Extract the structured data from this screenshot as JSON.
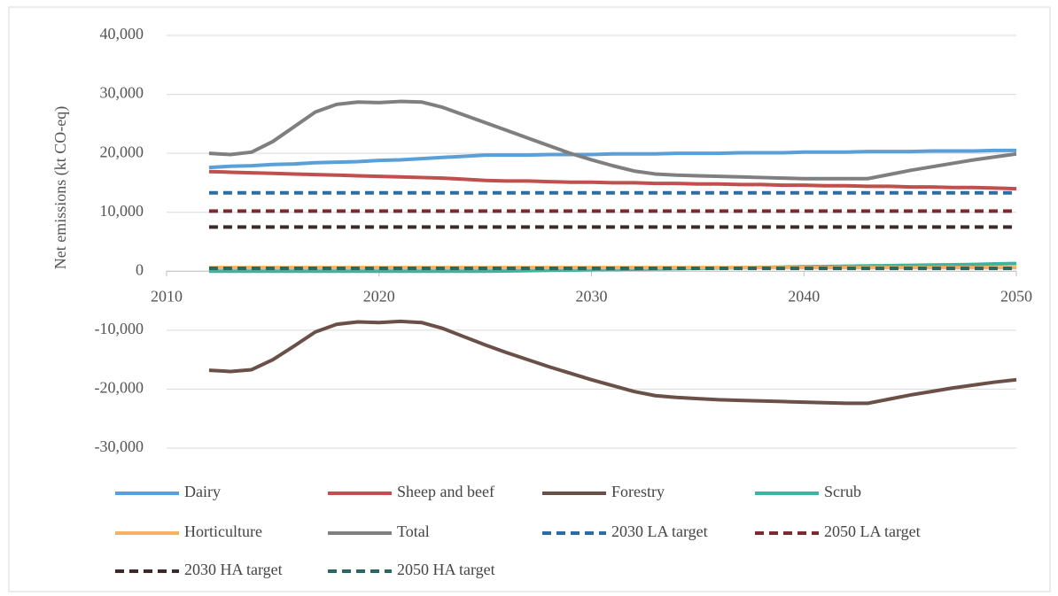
{
  "chart_data": {
    "type": "line",
    "y_label": "Net emissions (kt CO-eq)",
    "x": [
      2012,
      2013,
      2014,
      2015,
      2016,
      2017,
      2018,
      2019,
      2020,
      2021,
      2022,
      2023,
      2024,
      2025,
      2026,
      2027,
      2028,
      2029,
      2030,
      2031,
      2032,
      2033,
      2034,
      2035,
      2036,
      2037,
      2038,
      2039,
      2040,
      2041,
      2042,
      2043,
      2044,
      2045,
      2046,
      2047,
      2048,
      2049,
      2050
    ],
    "xlim": [
      2010,
      2050
    ],
    "xticks": [
      2010,
      2020,
      2030,
      2040,
      2050
    ],
    "ylim": [
      -30000,
      40000
    ],
    "yticks": [
      {
        "value": -30000,
        "label": "-30,000"
      },
      {
        "value": -20000,
        "label": "-20,000"
      },
      {
        "value": -10000,
        "label": "-10,000"
      },
      0,
      {
        "value": 10000,
        "label": "10,000"
      },
      {
        "value": 20000,
        "label": "20,000"
      },
      {
        "value": 30000,
        "label": "30,000"
      },
      {
        "value": 40000,
        "label": "40,000"
      }
    ],
    "grid": true,
    "legend": "bottom",
    "series": [
      {
        "name": "Dairy",
        "color": "#5b9fd9",
        "values": [
          17600,
          17800,
          17900,
          18100,
          18200,
          18400,
          18500,
          18600,
          18800,
          18900,
          19100,
          19300,
          19500,
          19700,
          19700,
          19700,
          19800,
          19800,
          19800,
          19900,
          19900,
          19900,
          20000,
          20000,
          20000,
          20100,
          20100,
          20100,
          20200,
          20200,
          20200,
          20300,
          20300,
          20300,
          20400,
          20400,
          20400,
          20500,
          20500
        ]
      },
      {
        "name": "Sheep and beef",
        "color": "#c0504d",
        "values": [
          16900,
          16800,
          16700,
          16600,
          16500,
          16400,
          16300,
          16200,
          16100,
          16000,
          15900,
          15800,
          15600,
          15400,
          15300,
          15300,
          15200,
          15100,
          15100,
          15000,
          15000,
          14900,
          14900,
          14800,
          14800,
          14700,
          14700,
          14600,
          14600,
          14500,
          14500,
          14400,
          14400,
          14300,
          14300,
          14200,
          14200,
          14100,
          14000
        ]
      },
      {
        "name": "Forestry",
        "color": "#6b5048",
        "values": [
          -16800,
          -17000,
          -16700,
          -15000,
          -12700,
          -10300,
          -9000,
          -8600,
          -8700,
          -8500,
          -8700,
          -9700,
          -11100,
          -12500,
          -13800,
          -15000,
          -16200,
          -17300,
          -18400,
          -19400,
          -20400,
          -21100,
          -21400,
          -21600,
          -21800,
          -21900,
          -22000,
          -22100,
          -22200,
          -22300,
          -22400,
          -22400,
          -21700,
          -21000,
          -20400,
          -19800,
          -19300,
          -18800,
          -18400
        ]
      },
      {
        "name": "Scrub",
        "color": "#3db4a0",
        "values": [
          0,
          0,
          0,
          0,
          0,
          0,
          0,
          0,
          0,
          0,
          0,
          0,
          0,
          0,
          50,
          100,
          150,
          200,
          250,
          300,
          350,
          400,
          450,
          500,
          550,
          600,
          650,
          700,
          750,
          800,
          850,
          900,
          950,
          1000,
          1050,
          1100,
          1150,
          1250,
          1300
        ]
      },
      {
        "name": "Horticulture",
        "color": "#f6b064",
        "values": [
          600,
          600,
          600,
          600,
          600,
          600,
          600,
          600,
          600,
          600,
          600,
          600,
          600,
          600,
          600,
          600,
          600,
          600,
          600,
          600,
          600,
          600,
          600,
          600,
          600,
          600,
          600,
          600,
          600,
          600,
          600,
          600,
          600,
          600,
          600,
          600,
          600,
          600,
          600
        ]
      },
      {
        "name": "Total",
        "color": "#7f7f7f",
        "values": [
          20000,
          19800,
          20200,
          22000,
          24500,
          27000,
          28300,
          28700,
          28600,
          28800,
          28700,
          27800,
          26500,
          25200,
          23900,
          22600,
          21300,
          20000,
          18900,
          17900,
          17000,
          16500,
          16300,
          16200,
          16100,
          16000,
          15900,
          15800,
          15700,
          15700,
          15700,
          15700,
          16400,
          17100,
          17700,
          18300,
          18900,
          19400,
          19900
        ]
      },
      {
        "name": "2030 LA target",
        "color": "#2e6ca4",
        "dash": true,
        "x": [
          2012,
          2050
        ],
        "values": [
          13300,
          13300
        ]
      },
      {
        "name": "2050 LA target",
        "color": "#7a2a30",
        "dash": true,
        "x": [
          2012,
          2050
        ],
        "values": [
          10200,
          10200
        ]
      },
      {
        "name": "2030 HA target",
        "color": "#3a2a28",
        "dash": true,
        "x": [
          2012,
          2050
        ],
        "values": [
          7500,
          7500
        ]
      },
      {
        "name": "2050 HA target",
        "color": "#2a6a5e",
        "dash": true,
        "x": [
          2012,
          2050
        ],
        "values": [
          500,
          500
        ]
      }
    ]
  }
}
